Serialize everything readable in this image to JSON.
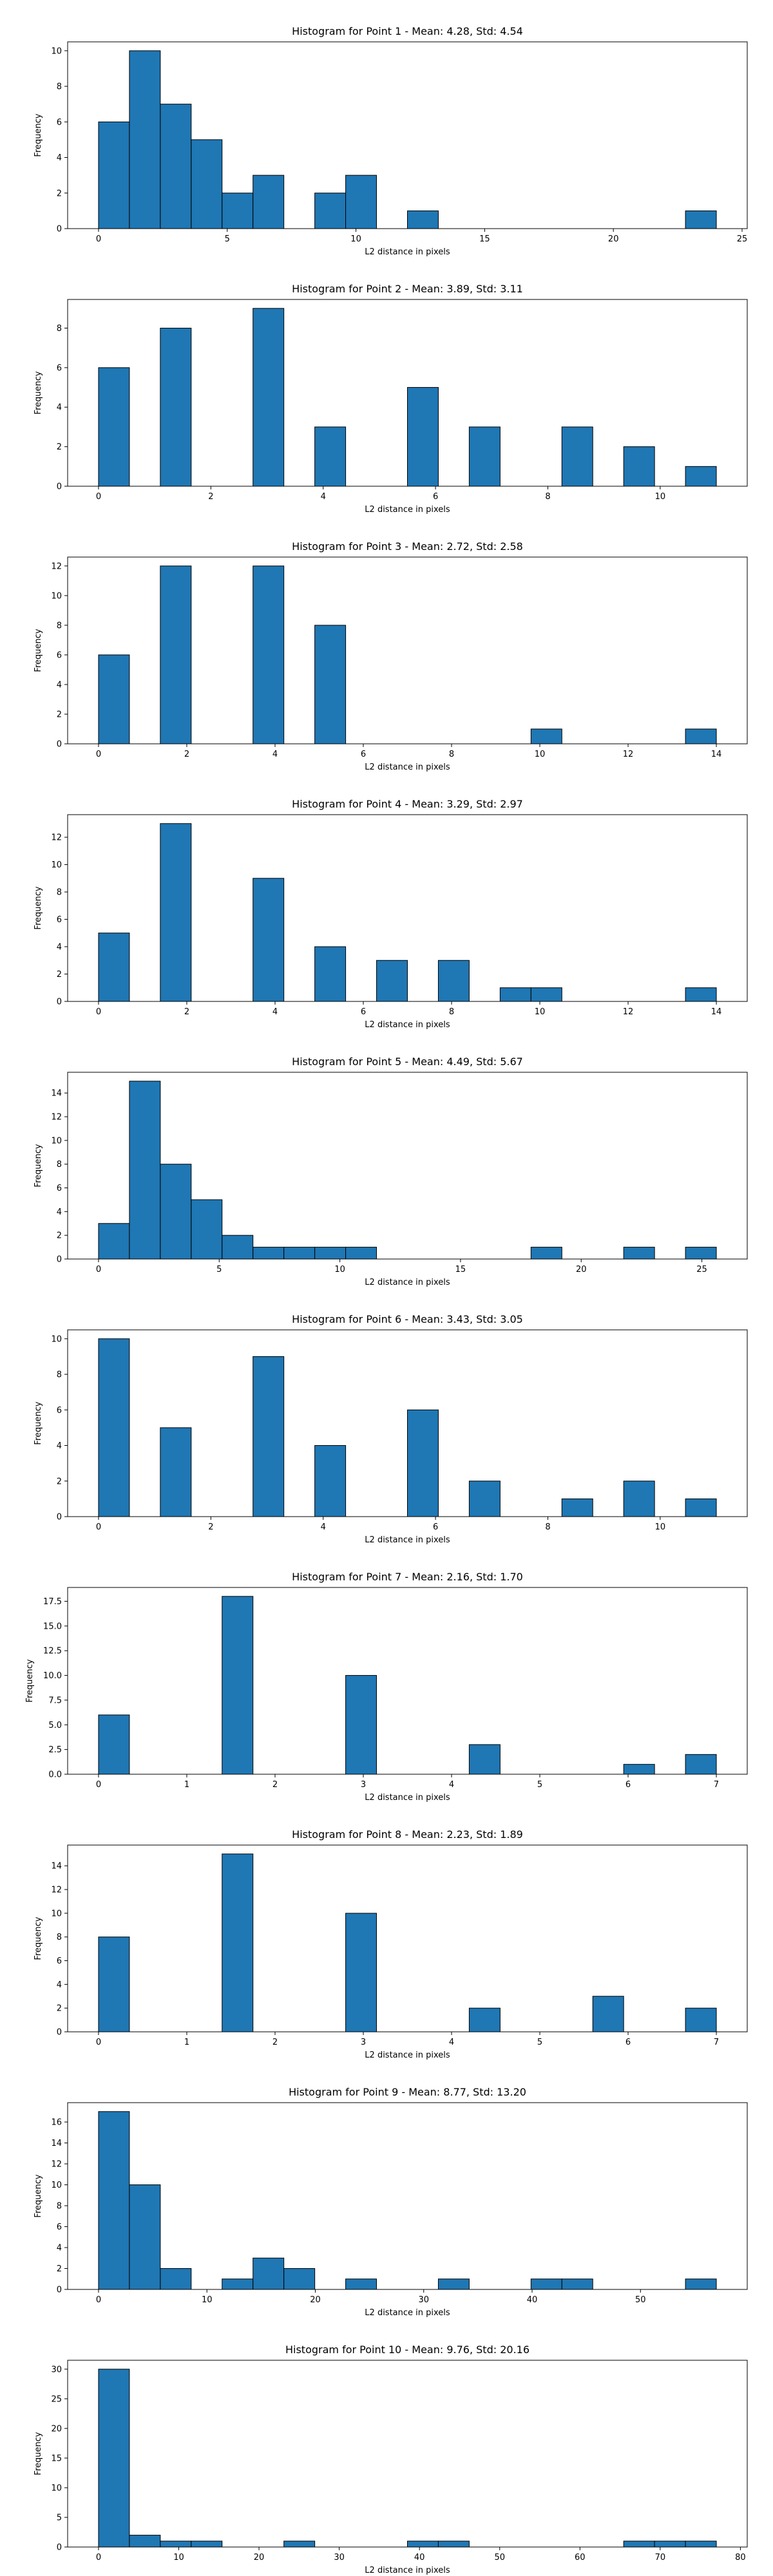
{
  "chart_data": [
    {
      "type": "bar",
      "title": "Histogram for Point 1 - Mean: 4.28, Std: 4.54",
      "xlabel": "L2 distance in pixels",
      "ylabel": "Frequency",
      "xlim": [
        -1.2,
        25.2
      ],
      "ylim": [
        0,
        10.5
      ],
      "xticks": [
        0,
        5,
        10,
        15,
        20,
        25
      ],
      "yticks": [
        0,
        2,
        4,
        6,
        8,
        10
      ],
      "bins": {
        "start": 0,
        "width": 1.2,
        "counts": [
          6,
          10,
          7,
          5,
          2,
          3,
          0,
          2,
          3,
          0,
          1,
          0,
          0,
          0,
          0,
          0,
          0,
          0,
          0,
          1
        ]
      },
      "color": "#1f77b4"
    },
    {
      "type": "bar",
      "title": "Histogram for Point 2 - Mean: 3.89, Std: 3.11",
      "xlabel": "L2 distance in pixels",
      "ylabel": "Frequency",
      "xlim": [
        -0.55,
        11.55
      ],
      "ylim": [
        0,
        9.45
      ],
      "xticks": [
        0,
        2,
        4,
        6,
        8,
        10
      ],
      "yticks": [
        0,
        2,
        4,
        6,
        8
      ],
      "bins": {
        "start": 0,
        "width": 0.55,
        "counts": [
          6,
          0,
          8,
          0,
          0,
          9,
          0,
          3,
          0,
          0,
          5,
          0,
          3,
          0,
          0,
          3,
          0,
          2,
          0,
          1
        ]
      },
      "color": "#1f77b4"
    },
    {
      "type": "bar",
      "title": "Histogram for Point 3 - Mean: 2.72, Std: 2.58",
      "xlabel": "L2 distance in pixels",
      "ylabel": "Frequency",
      "xlim": [
        -0.7,
        14.7
      ],
      "ylim": [
        0,
        12.6
      ],
      "xticks": [
        0,
        2,
        4,
        6,
        8,
        10,
        12,
        14
      ],
      "yticks": [
        0,
        2,
        4,
        6,
        8,
        10,
        12
      ],
      "bins": {
        "start": 0,
        "width": 0.7,
        "counts": [
          6,
          0,
          12,
          0,
          0,
          12,
          0,
          8,
          0,
          0,
          0,
          0,
          0,
          0,
          1,
          0,
          0,
          0,
          0,
          1
        ]
      },
      "color": "#1f77b4"
    },
    {
      "type": "bar",
      "title": "Histogram for Point 4 - Mean: 3.29, Std: 2.97",
      "xlabel": "L2 distance in pixels",
      "ylabel": "Frequency",
      "xlim": [
        -0.7,
        14.7
      ],
      "ylim": [
        0,
        13.65
      ],
      "xticks": [
        0,
        2,
        4,
        6,
        8,
        10,
        12,
        14
      ],
      "yticks": [
        0,
        2,
        4,
        6,
        8,
        10,
        12
      ],
      "bins": {
        "start": 0,
        "width": 0.7,
        "counts": [
          5,
          0,
          13,
          0,
          0,
          9,
          0,
          4,
          0,
          3,
          0,
          3,
          0,
          1,
          1,
          0,
          0,
          0,
          0,
          1
        ]
      },
      "color": "#1f77b4"
    },
    {
      "type": "bar",
      "title": "Histogram for Point 5 - Mean: 4.49, Std: 5.67",
      "xlabel": "L2 distance in pixels",
      "ylabel": "Frequency",
      "xlim": [
        -1.28,
        26.88
      ],
      "ylim": [
        0,
        15.75
      ],
      "xticks": [
        0,
        5,
        10,
        15,
        20,
        25
      ],
      "yticks": [
        0,
        2,
        4,
        6,
        8,
        10,
        12,
        14
      ],
      "bins": {
        "start": 0,
        "width": 1.28,
        "counts": [
          3,
          15,
          8,
          5,
          2,
          1,
          1,
          1,
          1,
          0,
          0,
          0,
          0,
          0,
          1,
          0,
          0,
          1,
          0,
          1
        ]
      },
      "color": "#1f77b4"
    },
    {
      "type": "bar",
      "title": "Histogram for Point 6 - Mean: 3.43, Std: 3.05",
      "xlabel": "L2 distance in pixels",
      "ylabel": "Frequency",
      "xlim": [
        -0.55,
        11.55
      ],
      "ylim": [
        0,
        10.5
      ],
      "xticks": [
        0,
        2,
        4,
        6,
        8,
        10
      ],
      "yticks": [
        0,
        2,
        4,
        6,
        8,
        10
      ],
      "bins": {
        "start": 0,
        "width": 0.55,
        "counts": [
          10,
          0,
          5,
          0,
          0,
          9,
          0,
          4,
          0,
          0,
          6,
          0,
          2,
          0,
          0,
          1,
          0,
          2,
          0,
          1
        ]
      },
      "color": "#1f77b4"
    },
    {
      "type": "bar",
      "title": "Histogram for Point 7 - Mean: 2.16, Std: 1.70",
      "xlabel": "L2 distance in pixels",
      "ylabel": "Frequency",
      "xlim": [
        -0.35,
        7.35
      ],
      "ylim": [
        0,
        18.9
      ],
      "xticks": [
        0,
        1,
        2,
        3,
        4,
        5,
        6,
        7
      ],
      "yticks": [
        0.0,
        2.5,
        5.0,
        7.5,
        10.0,
        12.5,
        15.0,
        17.5
      ],
      "ytick_labels": [
        "0.0",
        "2.5",
        "5.0",
        "7.5",
        "10.0",
        "12.5",
        "15.0",
        "17.5"
      ],
      "bins": {
        "start": 0,
        "width": 0.35,
        "counts": [
          6,
          0,
          0,
          0,
          18,
          0,
          0,
          0,
          10,
          0,
          0,
          0,
          3,
          0,
          0,
          0,
          0,
          1,
          0,
          2
        ]
      },
      "color": "#1f77b4"
    },
    {
      "type": "bar",
      "title": "Histogram for Point 8 - Mean: 2.23, Std: 1.89",
      "xlabel": "L2 distance in pixels",
      "ylabel": "Frequency",
      "xlim": [
        -0.35,
        7.35
      ],
      "ylim": [
        0,
        15.75
      ],
      "xticks": [
        0,
        1,
        2,
        3,
        4,
        5,
        6,
        7
      ],
      "yticks": [
        0,
        2,
        4,
        6,
        8,
        10,
        12,
        14
      ],
      "bins": {
        "start": 0,
        "width": 0.35,
        "counts": [
          8,
          0,
          0,
          0,
          15,
          0,
          0,
          0,
          10,
          0,
          0,
          0,
          2,
          0,
          0,
          0,
          3,
          0,
          0,
          2
        ]
      },
      "color": "#1f77b4"
    },
    {
      "type": "bar",
      "title": "Histogram for Point 9 - Mean: 8.77, Std: 13.20",
      "xlabel": "L2 distance in pixels",
      "ylabel": "Frequency",
      "xlim": [
        -2.85,
        59.85
      ],
      "ylim": [
        0,
        17.85
      ],
      "xticks": [
        0,
        10,
        20,
        30,
        40,
        50
      ],
      "yticks": [
        0,
        2,
        4,
        6,
        8,
        10,
        12,
        14,
        16
      ],
      "bins": {
        "start": 0,
        "width": 2.85,
        "counts": [
          17,
          10,
          2,
          0,
          1,
          3,
          2,
          0,
          1,
          0,
          0,
          1,
          0,
          0,
          1,
          1,
          0,
          0,
          0,
          1
        ]
      },
      "color": "#1f77b4"
    },
    {
      "type": "bar",
      "title": "Histogram for Point 10 - Mean: 9.76, Std: 20.16",
      "xlabel": "L2 distance in pixels",
      "ylabel": "Frequency",
      "xlim": [
        -3.85,
        80.85
      ],
      "ylim": [
        0,
        31.5
      ],
      "xticks": [
        0,
        10,
        20,
        30,
        40,
        50,
        60,
        70,
        80
      ],
      "yticks": [
        0,
        5,
        10,
        15,
        20,
        25,
        30
      ],
      "bins": {
        "start": 0,
        "width": 3.85,
        "counts": [
          30,
          2,
          1,
          1,
          0,
          0,
          1,
          0,
          0,
          0,
          1,
          1,
          0,
          0,
          0,
          0,
          0,
          1,
          1,
          1
        ]
      },
      "color": "#1f77b4"
    }
  ]
}
